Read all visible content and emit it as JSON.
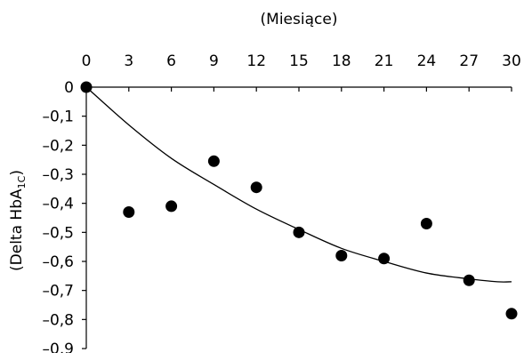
{
  "chart_data": {
    "type": "scatter",
    "xlabel": "(Miesiące)",
    "ylabel": "(Delta HbA",
    "ylabel_sub": "1C",
    "ylabel_end": ")",
    "x_axis_position": "top",
    "xlim": [
      0,
      30
    ],
    "ylim": [
      -0.9,
      0
    ],
    "x_ticks": [
      0,
      3,
      6,
      9,
      12,
      15,
      18,
      21,
      24,
      27,
      30
    ],
    "x_tick_labels": [
      "0",
      "3",
      "6",
      "9",
      "12",
      "15",
      "18",
      "21",
      "24",
      "27",
      "30"
    ],
    "y_ticks": [
      0,
      -0.1,
      -0.2,
      -0.3,
      -0.4,
      -0.5,
      -0.6,
      -0.7,
      -0.8,
      -0.9
    ],
    "y_tick_labels": [
      "0",
      "–0,1",
      "–0,2",
      "–0,3",
      "–0,4",
      "–0,5",
      "–0,6",
      "–0,7",
      "–0,8",
      "–0,9"
    ],
    "grid": false,
    "marker_color": "#000000",
    "line_color": "#000000",
    "series": [
      {
        "type": "scatter",
        "x": [
          0,
          3,
          6,
          9,
          12,
          15,
          18,
          21,
          24,
          27,
          30
        ],
        "y": [
          0,
          -0.43,
          -0.41,
          -0.255,
          -0.345,
          -0.5,
          -0.58,
          -0.59,
          -0.47,
          -0.665,
          -0.78
        ]
      },
      {
        "type": "line",
        "x": [
          0,
          3,
          6,
          9,
          12,
          15,
          18,
          21,
          24,
          27,
          29,
          30
        ],
        "y": [
          0,
          -0.13,
          -0.245,
          -0.335,
          -0.42,
          -0.49,
          -0.555,
          -0.6,
          -0.64,
          -0.66,
          -0.67,
          -0.67
        ]
      }
    ]
  }
}
